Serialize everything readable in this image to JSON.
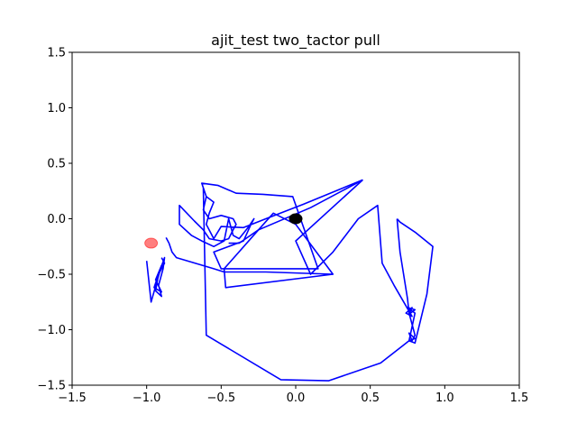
{
  "chart_data": {
    "type": "line",
    "title": "ajit_test two_tactor pull",
    "xlabel": "",
    "ylabel": "",
    "xlim": [
      -1.5,
      1.5
    ],
    "ylim": [
      -1.5,
      1.5
    ],
    "xticks": [
      -1.5,
      -1.0,
      -0.5,
      0.0,
      0.5,
      1.0,
      1.5
    ],
    "yticks": [
      -1.5,
      -1.0,
      -0.5,
      0.0,
      0.5,
      1.0,
      1.5
    ],
    "xtick_labels": [
      "−1.5",
      "−1.0",
      "−0.5",
      "0.0",
      "0.5",
      "1.0",
      "1.5"
    ],
    "ytick_labels": [
      "−1.5",
      "−1.0",
      "−0.5",
      "0.0",
      "0.5",
      "1.0",
      "1.5"
    ],
    "grid": false,
    "line_color": "#0000ff",
    "series": [
      {
        "points": [
          [
            0.45,
            0.35
          ],
          [
            0.05,
            0.13
          ],
          [
            -0.2,
            0.0
          ],
          [
            -0.35,
            -0.08
          ],
          [
            -0.5,
            -0.07
          ],
          [
            -0.55,
            -0.18
          ],
          [
            -0.6,
            -0.05
          ],
          [
            -0.58,
            0.05
          ],
          [
            -0.55,
            0.15
          ],
          [
            -0.6,
            0.2
          ],
          [
            -0.63,
            0.32
          ],
          [
            -0.52,
            0.3
          ],
          [
            -0.4,
            0.23
          ],
          [
            -0.22,
            0.22
          ],
          [
            -0.02,
            0.2
          ],
          [
            0.15,
            -0.45
          ],
          [
            -0.5,
            -0.45
          ],
          [
            -0.55,
            -0.3
          ],
          [
            -0.45,
            -0.25
          ],
          [
            -0.35,
            -0.2
          ],
          [
            -0.3,
            -0.05
          ],
          [
            -0.28,
            0.0
          ],
          [
            -0.32,
            -0.08
          ],
          [
            -0.38,
            -0.18
          ],
          [
            -0.42,
            -0.15
          ],
          [
            -0.45,
            0.0
          ],
          [
            -0.48,
            -0.2
          ],
          [
            -0.55,
            -0.25
          ],
          [
            -0.63,
            -0.2
          ],
          [
            -0.7,
            -0.15
          ],
          [
            -0.78,
            -0.05
          ],
          [
            -0.78,
            0.12
          ],
          [
            -0.68,
            -0.02
          ],
          [
            -0.62,
            -0.1
          ],
          [
            -0.58,
            -0.18
          ],
          [
            -0.5,
            -0.2
          ],
          [
            -0.45,
            -0.18
          ],
          [
            -0.42,
            -0.1
          ],
          [
            -0.4,
            -0.05
          ],
          [
            -0.42,
            0.0
          ],
          [
            -0.5,
            0.03
          ],
          [
            -0.58,
            0.0
          ],
          [
            -0.62,
            0.08
          ],
          [
            -0.6,
            0.2
          ],
          [
            -0.62,
            0.28
          ],
          [
            -0.6,
            -1.05
          ],
          [
            -0.1,
            -1.45
          ],
          [
            0.22,
            -1.46
          ],
          [
            0.57,
            -1.3
          ],
          [
            0.76,
            -1.1
          ],
          [
            0.8,
            -0.85
          ],
          [
            0.75,
            -0.8
          ],
          [
            0.8,
            -0.82
          ],
          [
            0.76,
            -0.86
          ],
          [
            0.78,
            -0.8
          ],
          [
            0.74,
            -0.85
          ],
          [
            0.78,
            -0.88
          ],
          [
            0.66,
            -0.6
          ],
          [
            0.58,
            -0.4
          ],
          [
            0.55,
            0.12
          ],
          [
            0.42,
            0.0
          ],
          [
            0.25,
            -0.3
          ],
          [
            0.1,
            -0.5
          ],
          [
            0.0,
            -0.2
          ],
          [
            0.45,
            0.35
          ]
        ]
      },
      {
        "points": [
          [
            0.68,
            0.0
          ],
          [
            0.7,
            -0.3
          ],
          [
            0.75,
            -0.72
          ],
          [
            0.76,
            -0.85
          ],
          [
            0.8,
            -1.05
          ],
          [
            0.78,
            -1.1
          ],
          [
            0.76,
            -1.03
          ],
          [
            0.8,
            -1.08
          ],
          [
            0.76,
            -1.1
          ],
          [
            0.8,
            -1.12
          ],
          [
            0.88,
            -0.68
          ],
          [
            0.92,
            -0.25
          ],
          [
            0.8,
            -0.12
          ],
          [
            0.7,
            -0.03
          ],
          [
            0.68,
            0.0
          ]
        ]
      },
      {
        "points": [
          [
            -0.9,
            -0.35
          ],
          [
            -0.88,
            -0.4
          ],
          [
            -0.92,
            -0.5
          ],
          [
            -0.94,
            -0.65
          ],
          [
            -0.9,
            -0.7
          ],
          [
            -0.92,
            -0.6
          ],
          [
            -0.89,
            -0.45
          ],
          [
            -0.88,
            -0.35
          ],
          [
            -0.92,
            -0.5
          ],
          [
            -0.95,
            -0.62
          ],
          [
            -0.9,
            -0.66
          ],
          [
            -0.94,
            -0.55
          ],
          [
            -0.9,
            -0.42
          ],
          [
            -0.97,
            -0.75
          ],
          [
            -1.0,
            -0.38
          ]
        ]
      },
      {
        "points": [
          [
            -0.87,
            -0.17
          ],
          [
            -0.85,
            -0.22
          ],
          [
            -0.83,
            -0.3
          ],
          [
            -0.8,
            -0.35
          ],
          [
            -0.55,
            -0.45
          ],
          [
            -0.48,
            -0.48
          ],
          [
            -0.2,
            -0.48
          ],
          [
            0.25,
            -0.5
          ],
          [
            0.0,
            -0.05
          ],
          [
            -0.15,
            0.05
          ],
          [
            -0.25,
            -0.1
          ],
          [
            -0.38,
            -0.22
          ],
          [
            -0.45,
            -0.22
          ]
        ]
      },
      {
        "points": [
          [
            0.45,
            0.35
          ],
          [
            0.1,
            0.1
          ],
          [
            -0.25,
            -0.1
          ],
          [
            -0.48,
            -0.45
          ],
          [
            -0.47,
            -0.62
          ],
          [
            0.25,
            -0.5
          ]
        ]
      }
    ],
    "markers": [
      {
        "x": -0.97,
        "y": -0.22,
        "color": "#ff0000",
        "opacity": 0.5
      },
      {
        "x": 0.0,
        "y": 0.0,
        "color": "#000000",
        "opacity": 1.0
      }
    ]
  }
}
